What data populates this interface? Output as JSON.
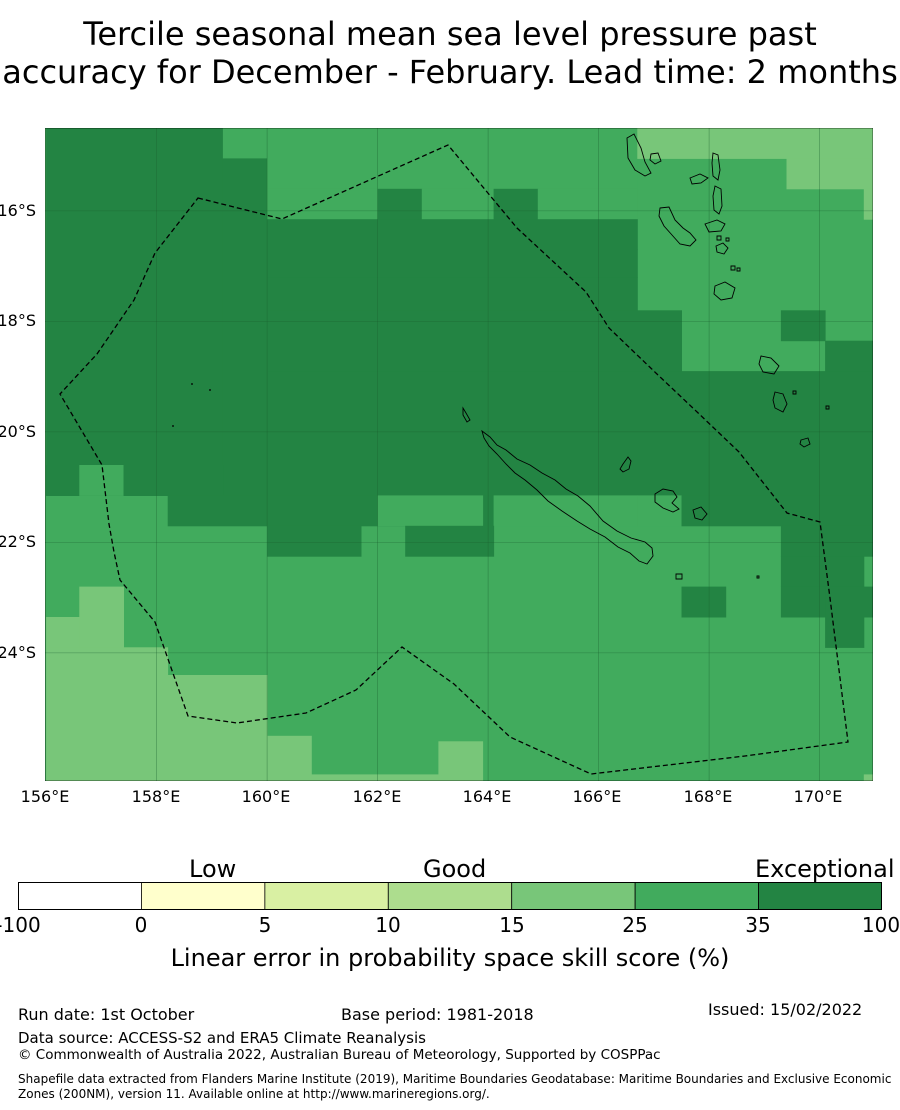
{
  "title": {
    "line1": "Tercile seasonal mean sea level pressure past",
    "line2": "accuracy for December - February. Lead time: 2 months"
  },
  "map": {
    "lat_labels": [
      "16°S",
      "18°S",
      "20°S",
      "22°S",
      "24°S"
    ],
    "lon_labels": [
      "156°E",
      "158°E",
      "160°E",
      "162°E",
      "164°E",
      "166°E",
      "168°E",
      "170°E"
    ],
    "default_category": 5,
    "cells": [
      {
        "lon": [
          156,
          159.2
        ],
        "lat": [
          -14.5,
          -21.15
        ],
        "cat": 6
      },
      {
        "lon": [
          159.2,
          160
        ],
        "lat": [
          -14.5,
          -15.05
        ],
        "cat": 5
      },
      {
        "lon": [
          159.2,
          160
        ],
        "lat": [
          -15.05,
          -21.15
        ],
        "cat": 6
      },
      {
        "lon": [
          160,
          166.7
        ],
        "lat": [
          -14.5,
          -15.6
        ],
        "cat": 5
      },
      {
        "lon": [
          166.7,
          171
        ],
        "lat": [
          -14.5,
          -15.05
        ],
        "cat": 4
      },
      {
        "lon": [
          169.4,
          171
        ],
        "lat": [
          -15.05,
          -15.6
        ],
        "cat": 4
      },
      {
        "lon": [
          160,
          162
        ],
        "lat": [
          -15.6,
          -16.15
        ],
        "cat": 5
      },
      {
        "lon": [
          162,
          162.8
        ],
        "lat": [
          -15.6,
          -16.15
        ],
        "cat": 6
      },
      {
        "lon": [
          162.8,
          164.1
        ],
        "lat": [
          -15.6,
          -16.15
        ],
        "cat": 5
      },
      {
        "lon": [
          164.1,
          164.9
        ],
        "lat": [
          -15.6,
          -16.15
        ],
        "cat": 6
      },
      {
        "lon": [
          164.9,
          166.7
        ],
        "lat": [
          -15.6,
          -16.15
        ],
        "cat": 5
      },
      {
        "lon": [
          170.8,
          171
        ],
        "lat": [
          -15.6,
          -16.15
        ],
        "cat": 4
      },
      {
        "lon": [
          160,
          166.7
        ],
        "lat": [
          -16.15,
          -16.7
        ],
        "cat": 6
      },
      {
        "lon": [
          160,
          165.7
        ],
        "lat": [
          -16.7,
          -17.2
        ],
        "cat": 6
      },
      {
        "lon": [
          165.7,
          166.7
        ],
        "lat": [
          -16.7,
          -17.2
        ],
        "cat": 6
      },
      {
        "lon": [
          160,
          166.7
        ],
        "lat": [
          -17.2,
          -17.8
        ],
        "cat": 6
      },
      {
        "lon": [
          160,
          167.5
        ],
        "lat": [
          -17.8,
          -18.9
        ],
        "cat": 6
      },
      {
        "lon": [
          169.3,
          170.1
        ],
        "lat": [
          -17.8,
          -18.35
        ],
        "cat": 6
      },
      {
        "lon": [
          170.1,
          171
        ],
        "lat": [
          -18.35,
          -18.9
        ],
        "cat": 6
      },
      {
        "lon": [
          160,
          171
        ],
        "lat": [
          -18.9,
          -21.15
        ],
        "cat": 6
      },
      {
        "lon": [
          156,
          156.6
        ],
        "lat": [
          -20.6,
          -21.15
        ],
        "cat": 6
      },
      {
        "lon": [
          156.6,
          157.4
        ],
        "lat": [
          -20.6,
          -21.15
        ],
        "cat": 5
      },
      {
        "lon": [
          157.4,
          159.2
        ],
        "lat": [
          -20.6,
          -21.15
        ],
        "cat": 6
      },
      {
        "lon": [
          158.2,
          164.1
        ],
        "lat": [
          -21.15,
          -21.7
        ],
        "cat": 6
      },
      {
        "lon": [
          162,
          163.9
        ],
        "lat": [
          -21.15,
          -21.7
        ],
        "cat": 5
      },
      {
        "lon": [
          164.1,
          166.7
        ],
        "lat": [
          -21.15,
          -21.7
        ],
        "cat": 5
      },
      {
        "lon": [
          166.7,
          167.5
        ],
        "lat": [
          -21.15,
          -21.7
        ],
        "cat": 5
      },
      {
        "lon": [
          167.5,
          171
        ],
        "lat": [
          -21.15,
          -21.7
        ],
        "cat": 6
      },
      {
        "lon": [
          160,
          161.7
        ],
        "lat": [
          -21.7,
          -22.25
        ],
        "cat": 6
      },
      {
        "lon": [
          162.5,
          164.1
        ],
        "lat": [
          -21.7,
          -22.25
        ],
        "cat": 6
      },
      {
        "lon": [
          169.3,
          171
        ],
        "lat": [
          -21.7,
          -22.25
        ],
        "cat": 6
      },
      {
        "lon": [
          169.3,
          170.8
        ],
        "lat": [
          -22.25,
          -22.8
        ],
        "cat": 6
      },
      {
        "lon": [
          169.3,
          170.8
        ],
        "lat": [
          -22.8,
          -23.35
        ],
        "cat": 6
      },
      {
        "lon": [
          167.5,
          168.3
        ],
        "lat": [
          -22.8,
          -23.35
        ],
        "cat": 6
      },
      {
        "lon": [
          170.1,
          171
        ],
        "lat": [
          -22.8,
          -23.35
        ],
        "cat": 6
      },
      {
        "lon": [
          170.1,
          170.8
        ],
        "lat": [
          -23.35,
          -23.9
        ],
        "cat": 6
      },
      {
        "lon": [
          156.6,
          157.4
        ],
        "lat": [
          -22.8,
          -23.9
        ],
        "cat": 4
      },
      {
        "lon": [
          156,
          156.6
        ],
        "lat": [
          -23.35,
          -23.9
        ],
        "cat": 4
      },
      {
        "lon": [
          156,
          158.2
        ],
        "lat": [
          -23.9,
          -24.4
        ],
        "cat": 4
      },
      {
        "lon": [
          156,
          160
        ],
        "lat": [
          -24.4,
          -26.4
        ],
        "cat": 4
      },
      {
        "lon": [
          160,
          160.8
        ],
        "lat": [
          -25.5,
          -26.4
        ],
        "cat": 4
      },
      {
        "lon": [
          160.8,
          163.1
        ],
        "lat": [
          -26.2,
          -26.4
        ],
        "cat": 4
      },
      {
        "lon": [
          163.1,
          163.9
        ],
        "lat": [
          -25.6,
          -26.4
        ],
        "cat": 4
      },
      {
        "lon": [
          170.8,
          171
        ],
        "lat": [
          -26.2,
          -26.4
        ],
        "cat": 4
      }
    ],
    "legend_colors": {
      "below_0": "#ffffff",
      "0_5": "#ffffcc",
      "5_10": "#d9f0a3",
      "10_15": "#addd8e",
      "15_25": "#78c679",
      "25_35": "#41ab5d",
      "35_100": "#238443"
    },
    "gridline_color": "#1a5e2e",
    "coast_color": "#000000",
    "boundary_color": "#000000"
  },
  "colorbar": {
    "words": [
      "Low",
      "Good",
      "Exceptional"
    ],
    "ticks": [
      "-100",
      "0",
      "5",
      "10",
      "15",
      "25",
      "35",
      "100"
    ],
    "colors": [
      "#ffffff",
      "#ffffcc",
      "#d9f0a3",
      "#addd8e",
      "#78c679",
      "#41ab5d",
      "#238443"
    ],
    "label": "Linear error in probability space skill score (%)"
  },
  "footer": {
    "run_date": "Run date: 1st October",
    "base_period": "Base period: 1981-2018",
    "issued": "Issued: 15/02/2022",
    "data_source": "Data source: ACCESS-S2 and ERA5 Climate Reanalysis",
    "copyright": "© Commonwealth of Australia 2022, Australian Bureau of Meteorology, Supported by COSPPac",
    "shapefile": "Shapefile data extracted from Flanders Marine Institute (2019), Maritime Boundaries Geodatabase: Maritime Boundaries and Exclusive Economic Zones (200NM), version 11. Available online at http://www.marineregions.org/."
  }
}
